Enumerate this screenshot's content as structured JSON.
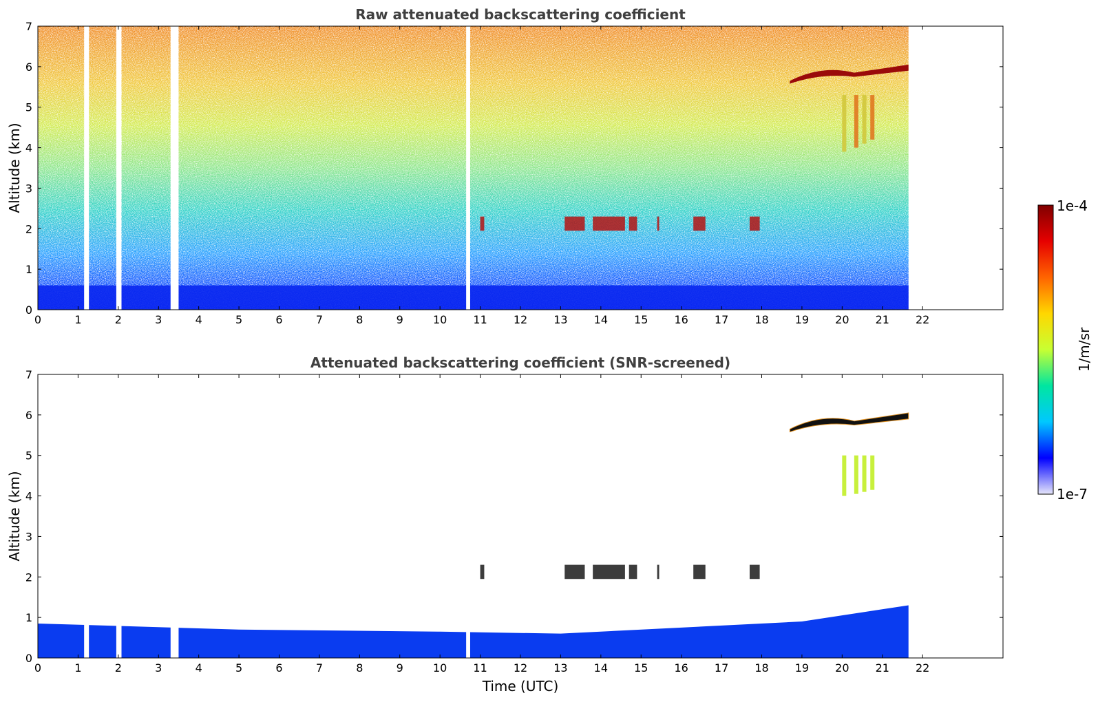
{
  "chart_data": [
    {
      "type": "heatmap",
      "title": "Raw attenuated backscattering coefficient",
      "xlabel": "",
      "ylabel": "Altitude (km)",
      "xlim": [
        0,
        24
      ],
      "ylim": [
        0,
        7
      ],
      "xticks": [
        0,
        1,
        2,
        3,
        4,
        5,
        6,
        7,
        8,
        9,
        10,
        11,
        12,
        13,
        14,
        15,
        16,
        17,
        18,
        19,
        20,
        21,
        22
      ],
      "yticks": [
        0,
        1,
        2,
        3,
        4,
        5,
        6,
        7
      ],
      "data_end_time": 21.65,
      "data_gaps": [
        [
          1.15,
          1.27
        ],
        [
          1.95,
          2.08
        ],
        [
          3.3,
          3.5
        ],
        [
          10.65,
          10.75
        ]
      ],
      "features": [
        {
          "name": "boundary layer",
          "start": 0,
          "end": 21.65,
          "altitude_range": [
            0,
            0.6
          ]
        },
        {
          "name": "cloud layer",
          "start": 18.7,
          "end": 21.65,
          "altitude_range": [
            5.6,
            6.1
          ]
        },
        {
          "name": "cloud layer",
          "start": 11,
          "end": 18.2,
          "altitude_range": [
            1.9,
            2.5
          ]
        },
        {
          "name": "precipitation streaks",
          "start": 19.7,
          "end": 21.0,
          "altitude_range": [
            3.8,
            5.4
          ]
        }
      ]
    },
    {
      "type": "heatmap",
      "title": "Attenuated backscattering coefficient (SNR-screened)",
      "xlabel": "Time (UTC)",
      "ylabel": "Altitude (km)",
      "xlim": [
        0,
        24
      ],
      "ylim": [
        0,
        7
      ],
      "xticks": [
        0,
        1,
        2,
        3,
        4,
        5,
        6,
        7,
        8,
        9,
        10,
        11,
        12,
        13,
        14,
        15,
        16,
        17,
        18,
        19,
        20,
        21,
        22
      ],
      "yticks": [
        0,
        1,
        2,
        3,
        4,
        5,
        6,
        7
      ],
      "data_end_time": 21.65,
      "boundary_layer_top": [
        [
          0,
          0.85
        ],
        [
          5,
          0.7
        ],
        [
          10,
          0.65
        ],
        [
          13,
          0.6
        ],
        [
          16,
          0.75
        ],
        [
          19,
          0.9
        ],
        [
          21.65,
          1.3
        ]
      ]
    }
  ],
  "colorbar": {
    "label": "1/m/sr",
    "min_label": "1e-7",
    "max_label": "1e-4",
    "scale": "log",
    "colormap": [
      "#e6e6fa",
      "#0000ff",
      "#00c8ff",
      "#00e6a0",
      "#c8ff32",
      "#ffd700",
      "#ff6400",
      "#e60000",
      "#800000"
    ]
  }
}
